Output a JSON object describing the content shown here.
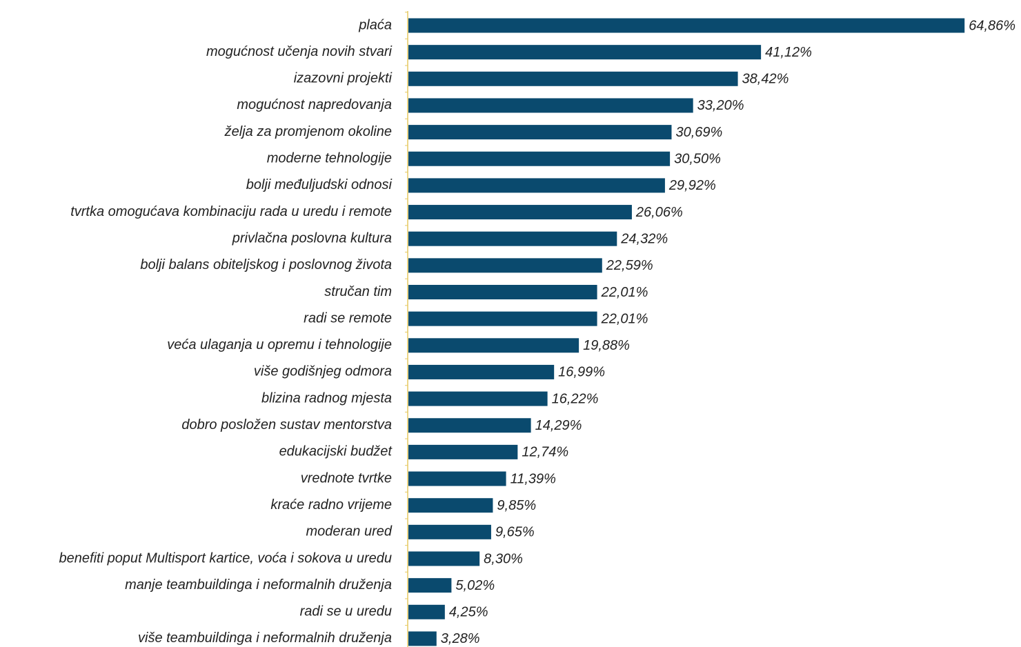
{
  "chart_data": {
    "type": "barh",
    "categories": [
      "plaća",
      "mogućnost učenja novih stvari",
      "izazovni projekti",
      "mogućnost napredovanja",
      "želja za promjenom okoline",
      "moderne tehnologije",
      "bolji međuljudski odnosi",
      "tvrtka omogućava kombinaciju rada u uredu i remote",
      "privlačna poslovna kultura",
      "bolji balans obiteljskog i poslovnog života",
      "stručan tim",
      "radi se remote",
      "veća ulaganja u opremu i tehnologije",
      "više godišnjeg odmora",
      "blizina radnog mjesta",
      "dobro posložen sustav mentorstva",
      "edukacijski budžet",
      "vrednote tvrtke",
      "kraće radno vrijeme",
      "moderan ured",
      "benefiti poput Multisport kartice, voća i sokova u uredu",
      "manje teambuildinga i neformalnih druženja",
      "radi se u uredu",
      "više teambuildinga i neformalnih druženja"
    ],
    "values": [
      64.86,
      41.12,
      38.42,
      33.2,
      30.69,
      30.5,
      29.92,
      26.06,
      24.32,
      22.59,
      22.01,
      22.01,
      19.88,
      16.99,
      16.22,
      14.29,
      12.74,
      11.39,
      9.85,
      9.65,
      8.3,
      5.02,
      4.25,
      3.28
    ],
    "value_labels": [
      "64,86%",
      "41,12%",
      "38,42%",
      "33,20%",
      "30,69%",
      "30,50%",
      "29,92%",
      "26,06%",
      "24,32%",
      "22,59%",
      "22,01%",
      "22,01%",
      "19,88%",
      "16,99%",
      "16,22%",
      "14,29%",
      "12,74%",
      "11,39%",
      "9,85%",
      "9,65%",
      "8,30%",
      "5,02%",
      "4,25%",
      "3,28%"
    ],
    "color": "#0a4a6e"
  }
}
